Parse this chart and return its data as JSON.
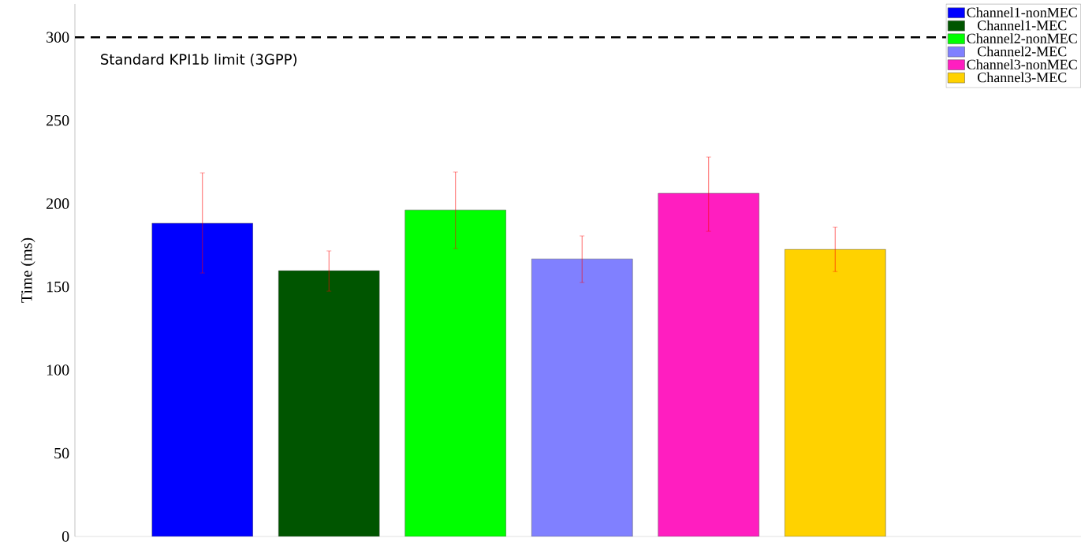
{
  "chart_data": {
    "type": "bar",
    "ylabel": "Time (ms)",
    "categories": [
      null
    ],
    "series": [
      {
        "name": "Channel1-nonMEC",
        "color": "#0000ff",
        "values": [
          188.2
        ],
        "errors": [
          [
            158.3,
            218.5
          ]
        ]
      },
      {
        "name": "Channel1-MEC",
        "color": "#005500",
        "values": [
          159.7
        ],
        "errors": [
          [
            147.4,
            171.6
          ]
        ]
      },
      {
        "name": "Channel2-nonMEC",
        "color": "#00ff00",
        "values": [
          196.2
        ],
        "errors": [
          [
            173,
            219
          ]
        ]
      },
      {
        "name": "Channel2-MEC",
        "color": "#8080ff",
        "values": [
          166.8
        ],
        "errors": [
          [
            152.6,
            180.6
          ]
        ]
      },
      {
        "name": "Channel3-nonMEC",
        "color": "#ff1ec0",
        "values": [
          206.2
        ],
        "errors": [
          [
            183.4,
            228
          ]
        ]
      },
      {
        "name": "Channel3-MEC",
        "color": "#ffd200",
        "values": [
          172.5
        ],
        "errors": [
          [
            159.2,
            185.8
          ]
        ]
      }
    ],
    "ylim": [
      0,
      320
    ],
    "yticks": [
      0,
      50,
      100,
      150,
      200,
      250,
      300
    ],
    "ref_lines": [
      {
        "axis": "y",
        "value": 300,
        "label": "Standard KPI1b limit (3GPP)",
        "color": "#000000",
        "line_style": "dashed"
      }
    ],
    "legend": "top right",
    "grid": false
  }
}
